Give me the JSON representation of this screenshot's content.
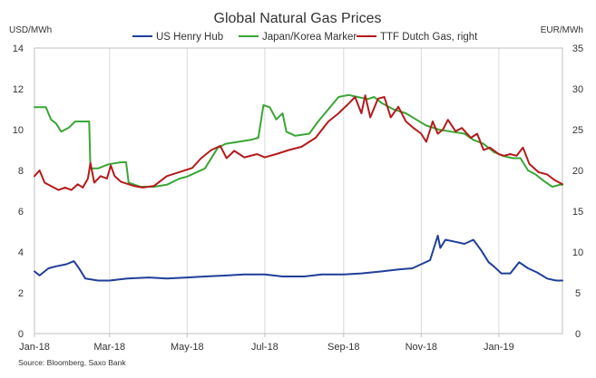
{
  "chart_data": {
    "type": "line",
    "title": "Global Natural Gas Prices",
    "left_axis_label": "USD/MWh",
    "right_axis_label": "EUR/MWh",
    "source": "Source: Bloomberg, Saxo Bank",
    "x_range": [
      "2018-01-01",
      "2019-02-20"
    ],
    "y_left": {
      "min": 0,
      "max": 14,
      "ticks": [
        "0",
        "2",
        "4",
        "6",
        "8",
        "10",
        "12",
        "14"
      ]
    },
    "y_right": {
      "min": 0,
      "max": 35,
      "ticks": [
        "0",
        "5",
        "10",
        "15",
        "20",
        "25",
        "30",
        "35"
      ]
    },
    "x_ticks": [
      {
        "label": "Jan-18",
        "date": "2018-01-01"
      },
      {
        "label": "Mar-18",
        "date": "2018-03-01"
      },
      {
        "label": "May-18",
        "date": "2018-05-01"
      },
      {
        "label": "Jul-18",
        "date": "2018-07-01"
      },
      {
        "label": "Sep-18",
        "date": "2018-09-01"
      },
      {
        "label": "Nov-18",
        "date": "2018-11-01"
      },
      {
        "label": "Jan-19",
        "date": "2019-01-01"
      }
    ],
    "grid": "vertical",
    "legend_placement": "top",
    "series": [
      {
        "name": "US Henry Hub",
        "axis": "left",
        "color": "#1f3f99",
        "points": [
          [
            "2018-01-01",
            3.05
          ],
          [
            "2018-01-05",
            2.85
          ],
          [
            "2018-01-12",
            3.2
          ],
          [
            "2018-01-18",
            3.3
          ],
          [
            "2018-01-26",
            3.4
          ],
          [
            "2018-02-01",
            3.55
          ],
          [
            "2018-02-05",
            3.2
          ],
          [
            "2018-02-10",
            2.7
          ],
          [
            "2018-02-20",
            2.6
          ],
          [
            "2018-03-01",
            2.6
          ],
          [
            "2018-03-15",
            2.7
          ],
          [
            "2018-04-01",
            2.75
          ],
          [
            "2018-04-15",
            2.7
          ],
          [
            "2018-05-01",
            2.75
          ],
          [
            "2018-05-15",
            2.8
          ],
          [
            "2018-06-01",
            2.85
          ],
          [
            "2018-06-15",
            2.9
          ],
          [
            "2018-07-01",
            2.9
          ],
          [
            "2018-07-15",
            2.8
          ],
          [
            "2018-08-01",
            2.8
          ],
          [
            "2018-08-15",
            2.9
          ],
          [
            "2018-09-01",
            2.9
          ],
          [
            "2018-09-15",
            2.95
          ],
          [
            "2018-10-01",
            3.05
          ],
          [
            "2018-10-15",
            3.15
          ],
          [
            "2018-10-25",
            3.2
          ],
          [
            "2018-11-01",
            3.4
          ],
          [
            "2018-11-08",
            3.6
          ],
          [
            "2018-11-14",
            4.8
          ],
          [
            "2018-11-16",
            4.2
          ],
          [
            "2018-11-20",
            4.6
          ],
          [
            "2018-11-28",
            4.5
          ],
          [
            "2018-12-05",
            4.4
          ],
          [
            "2018-12-12",
            4.6
          ],
          [
            "2018-12-18",
            4.1
          ],
          [
            "2018-12-24",
            3.5
          ],
          [
            "2018-12-28",
            3.3
          ],
          [
            "2019-01-03",
            2.95
          ],
          [
            "2019-01-10",
            2.95
          ],
          [
            "2019-01-17",
            3.5
          ],
          [
            "2019-01-24",
            3.2
          ],
          [
            "2019-01-31",
            3.0
          ],
          [
            "2019-02-08",
            2.7
          ],
          [
            "2019-02-15",
            2.6
          ],
          [
            "2019-02-20",
            2.6
          ]
        ]
      },
      {
        "name": "Japan/Korea Marker",
        "axis": "left",
        "color": "#3aa635",
        "points": [
          [
            "2018-01-01",
            11.1
          ],
          [
            "2018-01-10",
            11.1
          ],
          [
            "2018-01-14",
            10.5
          ],
          [
            "2018-01-18",
            10.3
          ],
          [
            "2018-01-22",
            9.9
          ],
          [
            "2018-01-28",
            10.1
          ],
          [
            "2018-02-02",
            10.4
          ],
          [
            "2018-02-13",
            10.4
          ],
          [
            "2018-02-14",
            8.1
          ],
          [
            "2018-02-20",
            8.1
          ],
          [
            "2018-02-28",
            8.3
          ],
          [
            "2018-03-10",
            8.4
          ],
          [
            "2018-03-14",
            8.4
          ],
          [
            "2018-03-16",
            7.4
          ],
          [
            "2018-03-25",
            7.2
          ],
          [
            "2018-04-05",
            7.2
          ],
          [
            "2018-04-15",
            7.3
          ],
          [
            "2018-04-25",
            7.6
          ],
          [
            "2018-05-01",
            7.7
          ],
          [
            "2018-05-15",
            8.1
          ],
          [
            "2018-05-25",
            9.1
          ],
          [
            "2018-05-31",
            9.3
          ],
          [
            "2018-06-10",
            9.4
          ],
          [
            "2018-06-20",
            9.5
          ],
          [
            "2018-06-26",
            9.6
          ],
          [
            "2018-06-30",
            11.2
          ],
          [
            "2018-07-05",
            11.1
          ],
          [
            "2018-07-10",
            10.5
          ],
          [
            "2018-07-15",
            10.8
          ],
          [
            "2018-07-18",
            9.9
          ],
          [
            "2018-07-25",
            9.7
          ],
          [
            "2018-08-05",
            9.8
          ],
          [
            "2018-08-12",
            10.4
          ],
          [
            "2018-08-20",
            11.0
          ],
          [
            "2018-08-28",
            11.6
          ],
          [
            "2018-09-05",
            11.7
          ],
          [
            "2018-09-12",
            11.6
          ],
          [
            "2018-09-20",
            11.5
          ],
          [
            "2018-09-25",
            11.6
          ],
          [
            "2018-10-01",
            11.3
          ],
          [
            "2018-10-10",
            11.0
          ],
          [
            "2018-10-20",
            10.8
          ],
          [
            "2018-10-28",
            10.5
          ],
          [
            "2018-11-05",
            10.2
          ],
          [
            "2018-11-15",
            10.0
          ],
          [
            "2018-11-25",
            9.9
          ],
          [
            "2018-12-05",
            9.8
          ],
          [
            "2018-12-12",
            9.5
          ],
          [
            "2018-12-20",
            9.3
          ],
          [
            "2018-12-28",
            8.9
          ],
          [
            "2019-01-05",
            8.7
          ],
          [
            "2019-01-12",
            8.6
          ],
          [
            "2019-01-18",
            8.6
          ],
          [
            "2019-01-24",
            8.0
          ],
          [
            "2019-01-30",
            7.8
          ],
          [
            "2019-02-05",
            7.5
          ],
          [
            "2019-02-12",
            7.2
          ],
          [
            "2019-02-18",
            7.3
          ],
          [
            "2019-02-20",
            7.3
          ]
        ]
      },
      {
        "name": "TTF Dutch Gas, right",
        "axis": "right",
        "color": "#b31b1b",
        "points": [
          [
            "2018-01-01",
            19.3
          ],
          [
            "2018-01-05",
            20.0
          ],
          [
            "2018-01-09",
            18.5
          ],
          [
            "2018-01-15",
            18.0
          ],
          [
            "2018-01-20",
            17.6
          ],
          [
            "2018-01-25",
            17.9
          ],
          [
            "2018-01-30",
            17.6
          ],
          [
            "2018-02-04",
            18.3
          ],
          [
            "2018-02-08",
            17.9
          ],
          [
            "2018-02-12",
            19.0
          ],
          [
            "2018-02-14",
            20.9
          ],
          [
            "2018-02-17",
            18.5
          ],
          [
            "2018-02-22",
            19.3
          ],
          [
            "2018-02-27",
            19.0
          ],
          [
            "2018-03-02",
            20.6
          ],
          [
            "2018-03-05",
            19.3
          ],
          [
            "2018-03-10",
            18.6
          ],
          [
            "2018-03-20",
            18.1
          ],
          [
            "2018-03-27",
            17.9
          ],
          [
            "2018-04-05",
            18.1
          ],
          [
            "2018-04-15",
            19.3
          ],
          [
            "2018-04-25",
            19.8
          ],
          [
            "2018-05-05",
            20.3
          ],
          [
            "2018-05-12",
            21.5
          ],
          [
            "2018-05-20",
            22.5
          ],
          [
            "2018-05-27",
            23.0
          ],
          [
            "2018-06-01",
            21.5
          ],
          [
            "2018-06-07",
            22.4
          ],
          [
            "2018-06-15",
            21.6
          ],
          [
            "2018-06-25",
            22.0
          ],
          [
            "2018-07-01",
            21.6
          ],
          [
            "2018-07-10",
            22.0
          ],
          [
            "2018-07-20",
            22.5
          ],
          [
            "2018-07-30",
            22.9
          ],
          [
            "2018-08-10",
            24.0
          ],
          [
            "2018-08-20",
            26.0
          ],
          [
            "2018-08-28",
            27.0
          ],
          [
            "2018-09-05",
            28.2
          ],
          [
            "2018-09-10",
            29.0
          ],
          [
            "2018-09-15",
            27.0
          ],
          [
            "2018-09-18",
            29.2
          ],
          [
            "2018-09-22",
            26.5
          ],
          [
            "2018-09-28",
            28.8
          ],
          [
            "2018-10-03",
            29.0
          ],
          [
            "2018-10-08",
            26.5
          ],
          [
            "2018-10-14",
            27.8
          ],
          [
            "2018-10-20",
            26.0
          ],
          [
            "2018-10-26",
            25.2
          ],
          [
            "2018-11-01",
            24.5
          ],
          [
            "2018-11-05",
            23.5
          ],
          [
            "2018-11-10",
            26.0
          ],
          [
            "2018-11-14",
            24.5
          ],
          [
            "2018-11-18",
            25.0
          ],
          [
            "2018-11-22",
            26.2
          ],
          [
            "2018-11-28",
            24.8
          ],
          [
            "2018-12-03",
            25.2
          ],
          [
            "2018-12-10",
            24.0
          ],
          [
            "2018-12-15",
            24.5
          ],
          [
            "2018-12-20",
            22.5
          ],
          [
            "2018-12-25",
            22.8
          ],
          [
            "2019-01-01",
            22.0
          ],
          [
            "2019-01-05",
            21.8
          ],
          [
            "2019-01-10",
            22.0
          ],
          [
            "2019-01-15",
            21.8
          ],
          [
            "2019-01-20",
            22.8
          ],
          [
            "2019-01-25",
            20.8
          ],
          [
            "2019-02-01",
            19.8
          ],
          [
            "2019-02-08",
            19.5
          ],
          [
            "2019-02-14",
            18.8
          ],
          [
            "2019-02-20",
            18.3
          ]
        ]
      }
    ]
  }
}
